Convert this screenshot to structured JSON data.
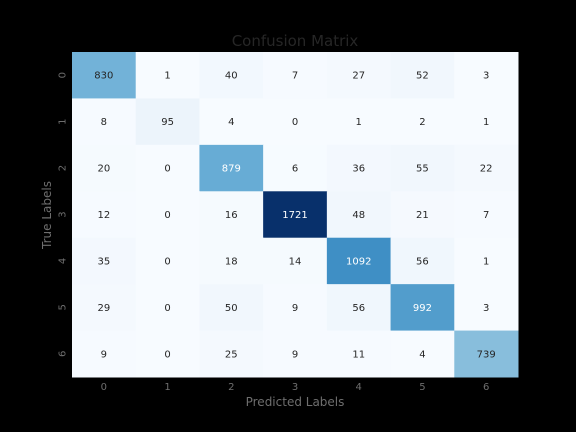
{
  "chart_data": {
    "type": "heatmap",
    "title": "Confusion Matrix",
    "xlabel": "Predicted Labels",
    "ylabel": "True Labels",
    "x_categories": [
      "0",
      "1",
      "2",
      "3",
      "4",
      "5",
      "6"
    ],
    "y_categories": [
      "0",
      "1",
      "2",
      "3",
      "4",
      "5",
      "6"
    ],
    "values": [
      [
        830,
        1,
        40,
        7,
        27,
        52,
        3
      ],
      [
        8,
        95,
        4,
        0,
        1,
        2,
        1
      ],
      [
        20,
        0,
        879,
        6,
        36,
        55,
        22
      ],
      [
        12,
        0,
        16,
        1721,
        48,
        21,
        7
      ],
      [
        35,
        0,
        18,
        14,
        1092,
        56,
        1
      ],
      [
        29,
        0,
        50,
        9,
        56,
        992,
        3
      ],
      [
        9,
        0,
        25,
        9,
        11,
        4,
        739
      ]
    ],
    "colormap": "Blues",
    "color_low": "#f7fbff",
    "color_high": "#08306b",
    "value_range": [
      0,
      1721
    ],
    "grid": false,
    "legend": "none"
  }
}
